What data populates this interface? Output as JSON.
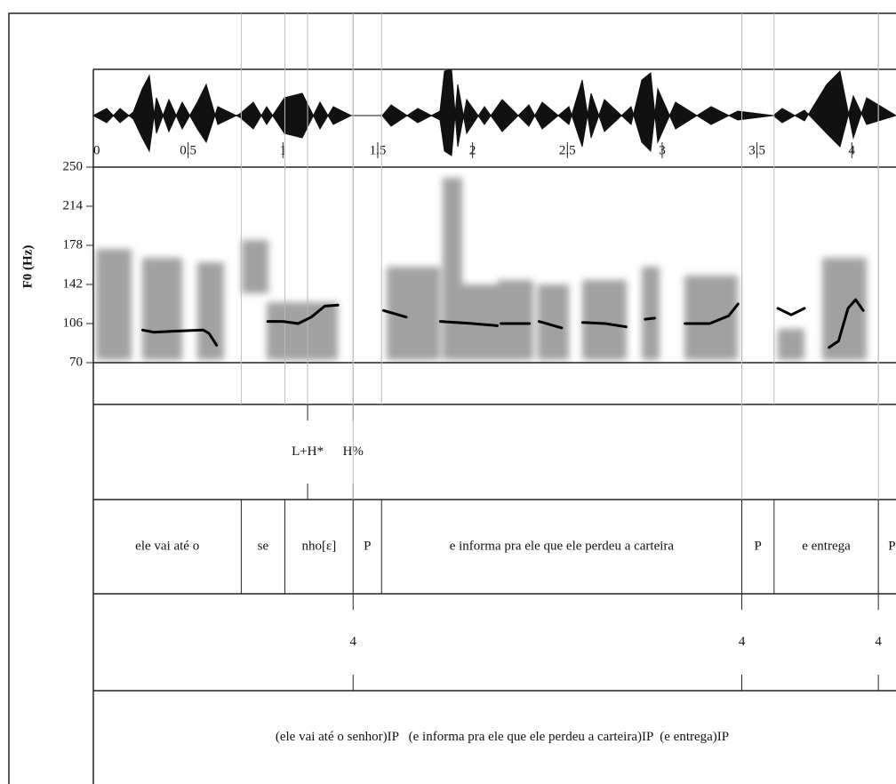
{
  "chart_data": {
    "type": "line",
    "y_label": "F0 (Hz)",
    "xlim": [
      0,
      4.233
    ],
    "xticks": [
      0,
      0.5,
      1,
      1.5,
      2,
      2.5,
      3,
      3.5,
      4
    ],
    "ylim": [
      70,
      250
    ],
    "yticks": [
      70,
      106,
      142,
      178,
      214,
      250
    ],
    "x": [
      0.26,
      0.32,
      0.42,
      0.58,
      0.61,
      0.65,
      null,
      0.92,
      1.0,
      1.08,
      1.15,
      1.22,
      1.29,
      null,
      1.53,
      1.65,
      null,
      1.83,
      2.0,
      2.13,
      null,
      2.15,
      2.3,
      null,
      2.35,
      2.47,
      null,
      2.58,
      2.7,
      2.81,
      null,
      2.91,
      2.96,
      null,
      3.12,
      3.25,
      3.35,
      3.4,
      null,
      3.61,
      3.68,
      3.75,
      null,
      3.88,
      3.93,
      3.98,
      4.02,
      4.06
    ],
    "series": [
      {
        "color": "#000000",
        "values": [
          100,
          98,
          99,
          100,
          97,
          86,
          null,
          108,
          108,
          106,
          112,
          122,
          123,
          null,
          118,
          112,
          null,
          108,
          106,
          104,
          null,
          106,
          106,
          null,
          108,
          102,
          null,
          107,
          106,
          103,
          null,
          110,
          111,
          null,
          106,
          106,
          113,
          124,
          null,
          120,
          114,
          120,
          null,
          84,
          90,
          120,
          128,
          118
        ]
      }
    ],
    "tiers": [
      {
        "points": [
          {
            "time": 1.13,
            "label": "L+H*"
          },
          {
            "time": 1.37,
            "label": "H%"
          }
        ]
      },
      {
        "boundaries": [
          0.78,
          1.01,
          1.37,
          1.52,
          3.42,
          3.59,
          4.14
        ],
        "labels": [
          "ele vai até o",
          "se",
          "nho[ɛ]",
          "P",
          "e informa pra ele que ele perdeu a carteira",
          "P",
          "e entrega",
          "P"
        ]
      },
      {
        "points": [
          {
            "time": 1.37,
            "label": "4"
          },
          {
            "time": 3.42,
            "label": "4"
          },
          {
            "time": 4.14,
            "label": "4"
          }
        ]
      },
      {
        "text": "(ele vai até o senhor)IP   (e informa pra ele que ele perdeu a carteira)IP  (e entrega)IP"
      }
    ]
  }
}
